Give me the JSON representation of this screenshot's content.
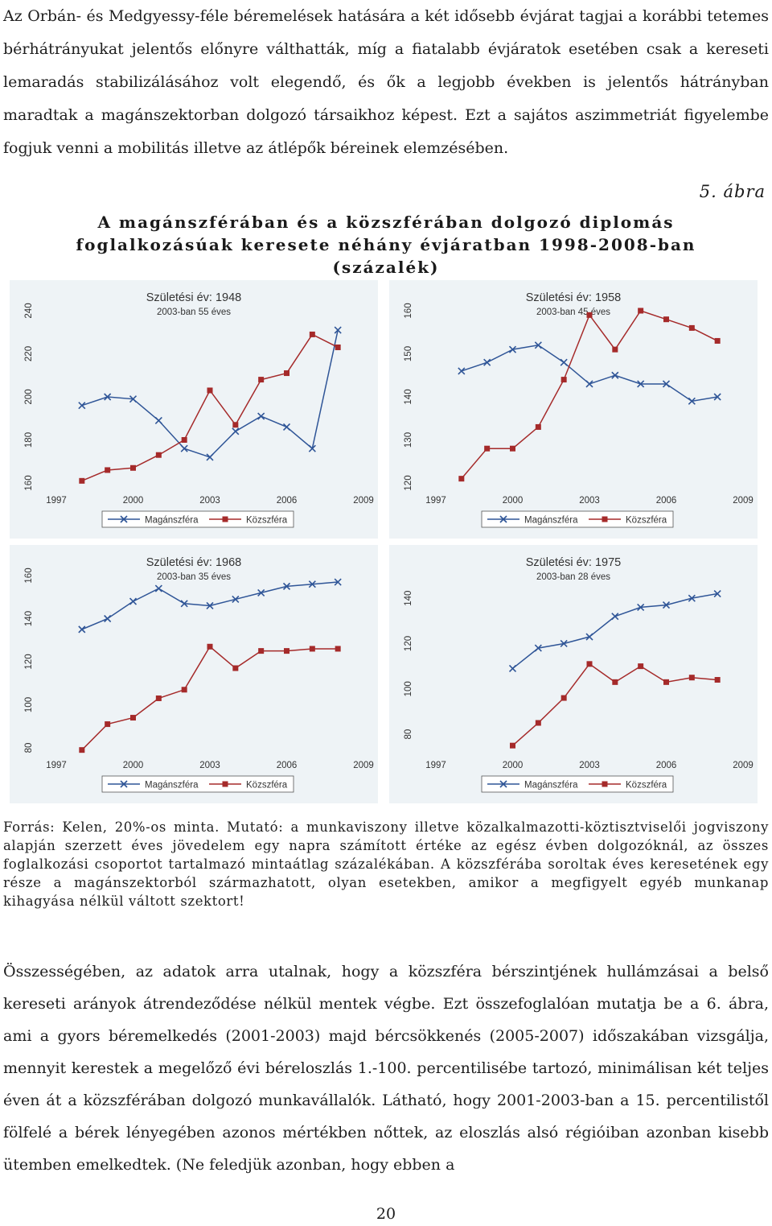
{
  "text": {
    "intro": "Az Orbán- és Medgyessy-féle béremelések hatására a két idősebb évjárat tagjai a korábbi tetemes bérhátrányukat jelentős előnyre válthatták, míg a fiatalabb évjáratok esetében csak a kereseti lemaradás stabilizálásához volt elegendő, és ők a legjobb években is jelentős hátrányban maradtak a magánszektorban dolgozó társaikhoz képest. Ezt a sajátos aszimmetriát figyelembe fogjuk venni a mobilitás illetve az átlépők béreinek elemzésében.",
    "figure_label": "5. ábra",
    "figure_title": "A magánszférában és a közszférában dolgozó diplomás foglalkozásúak keresete néhány évjáratban 1998-2008-ban (százalék)",
    "note": "Forrás: Kelen, 20%-os minta. Mutató: a munkaviszony illetve közalkalmazotti-köztisztviselői jogviszony alapján szerzett éves jövedelem egy napra számított értéke az egész évben dolgozóknál, az összes foglalkozási csoportot tartalmazó mintaátlag százalékában. A közszférába soroltak éves keresetének egy része a magánszektorból származhatott, olyan esetekben, amikor a megfigyelt egyéb munkanap kihagyása nélkül váltott szektort!",
    "summary": "Összességében, az adatok arra utalnak, hogy a közszféra bérszintjének hullámzásai a belső kereseti arányok átrendeződése nélkül mentek végbe. Ezt összefoglalóan mutatja be a 6. ábra, ami a gyors béremelkedés (2001-2003) majd bércsökkenés (2005-2007) időszakában vizsgálja, mennyit kerestek a megelőző évi béreloszlás 1.-100. percentilisébe tartozó, minimálisan két teljes éven át a közszférában dolgozó munkavállalók. Látható, hogy 2001-2003-ban a 15. percentilistől fölfelé a bérek lényegében azonos mértékben nőttek, az eloszlás alsó régióiban azonban kisebb ütemben emelkedtek. (Ne feledjük azonban, hogy ebben a",
    "page_number": "20"
  },
  "colors": {
    "magan": "#2f5597",
    "kozszfera": "#a52a2a",
    "panel_bg": "#eef3f6"
  },
  "chart_data": [
    {
      "type": "line",
      "title": "Születési év: 1948",
      "subtitle": "2003-ban 55 éves",
      "xticks": [
        1997,
        2000,
        2003,
        2006,
        2009
      ],
      "yticks": [
        160,
        180,
        200,
        220,
        240
      ],
      "xlim": [
        1997,
        2009
      ],
      "ylim": [
        160,
        240
      ],
      "legend": "bottom",
      "series": [
        {
          "name": "Magánszféra",
          "marker": "x",
          "x": [
            1998,
            1999,
            2000,
            2001,
            2002,
            2003,
            2004,
            2005,
            2006,
            2007,
            2008
          ],
          "y": [
            196,
            200,
            199,
            189,
            176,
            172,
            184,
            191,
            186,
            176,
            231
          ]
        },
        {
          "name": "Közszféra",
          "marker": "square",
          "x": [
            1998,
            1999,
            2000,
            2001,
            2002,
            2003,
            2004,
            2005,
            2006,
            2007,
            2008
          ],
          "y": [
            161,
            166,
            167,
            173,
            180,
            203,
            187,
            208,
            211,
            229,
            223
          ]
        }
      ]
    },
    {
      "type": "line",
      "title": "Születési év: 1958",
      "subtitle": "2003-ban 45 éves",
      "xticks": [
        1997,
        2000,
        2003,
        2006,
        2009
      ],
      "yticks": [
        120,
        130,
        140,
        150,
        160
      ],
      "xlim": [
        1997,
        2009
      ],
      "ylim": [
        120,
        160
      ],
      "legend": "bottom",
      "series": [
        {
          "name": "Magánszféra",
          "marker": "x",
          "x": [
            1998,
            1999,
            2000,
            2001,
            2002,
            2003,
            2004,
            2005,
            2006,
            2007,
            2008
          ],
          "y": [
            146,
            148,
            151,
            152,
            148,
            143,
            145,
            143,
            143,
            139,
            140
          ]
        },
        {
          "name": "Közszféra",
          "marker": "square",
          "x": [
            1998,
            1999,
            2000,
            2001,
            2002,
            2003,
            2004,
            2005,
            2006,
            2007,
            2008
          ],
          "y": [
            121,
            128,
            128,
            133,
            144,
            159,
            151,
            160,
            158,
            156,
            153
          ]
        }
      ]
    },
    {
      "type": "line",
      "title": "Születési év: 1968",
      "subtitle": "2003-ban 35 éves",
      "xticks": [
        1997,
        2000,
        2003,
        2006,
        2009
      ],
      "yticks": [
        80,
        100,
        120,
        140,
        160
      ],
      "xlim": [
        1997,
        2009
      ],
      "ylim": [
        80,
        160
      ],
      "legend": "bottom",
      "series": [
        {
          "name": "Magánszféra",
          "marker": "x",
          "x": [
            1998,
            1999,
            2000,
            2001,
            2002,
            2003,
            2004,
            2005,
            2006,
            2007,
            2008
          ],
          "y": [
            135,
            140,
            148,
            154,
            147,
            146,
            149,
            152,
            155,
            156,
            157
          ]
        },
        {
          "name": "Közszféra",
          "marker": "square",
          "x": [
            1998,
            1999,
            2000,
            2001,
            2002,
            2003,
            2004,
            2005,
            2006,
            2007,
            2008
          ],
          "y": [
            79,
            91,
            94,
            103,
            107,
            127,
            117,
            125,
            125,
            126,
            126
          ]
        }
      ]
    },
    {
      "type": "line",
      "title": "Születési év: 1975",
      "subtitle": "2003-ban 28 éves",
      "xticks": [
        1997,
        2000,
        2003,
        2006,
        2009
      ],
      "yticks": [
        80,
        100,
        120,
        140
      ],
      "xlim": [
        1997,
        2009
      ],
      "ylim": [
        74,
        150
      ],
      "legend": "bottom",
      "series": [
        {
          "name": "Magánszféra",
          "marker": "x",
          "x": [
            2000,
            2001,
            2002,
            2003,
            2004,
            2005,
            2006,
            2007,
            2008
          ],
          "y": [
            109,
            118,
            120,
            123,
            132,
            136,
            137,
            140,
            142
          ]
        },
        {
          "name": "Közszféra",
          "marker": "square",
          "x": [
            2000,
            2001,
            2002,
            2003,
            2004,
            2005,
            2006,
            2007,
            2008
          ],
          "y": [
            75,
            85,
            96,
            111,
            103,
            110,
            103,
            105,
            104
          ]
        }
      ]
    }
  ]
}
